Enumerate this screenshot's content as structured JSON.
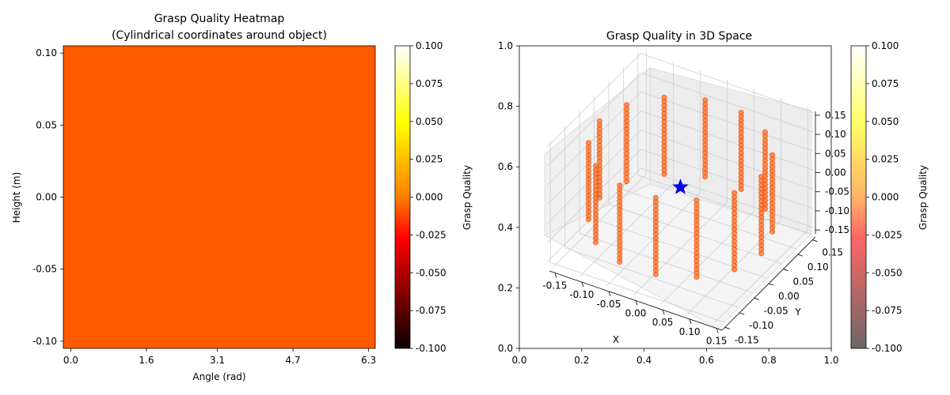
{
  "chart_data": [
    {
      "type": "heatmap",
      "title": "Grasp Quality Heatmap",
      "subtitle": "(Cylindrical coordinates around object)",
      "xlabel": "Angle (rad)",
      "ylabel": "Height (m)",
      "xticks": [
        "0.0",
        "1.6",
        "3.1",
        "4.7",
        "6.3"
      ],
      "yticks": [
        "-0.10",
        "-0.05",
        "0.00",
        "0.05",
        "0.10"
      ],
      "xlim": [
        -0.157,
        6.44
      ],
      "ylim": [
        -0.105,
        0.105
      ],
      "grid": false,
      "value": 0.0,
      "fill_color": "#ff5a00",
      "colorbar": {
        "label": "Grasp Quality",
        "colormap": "hot",
        "range": [
          -0.1,
          0.1
        ],
        "ticks": [
          "-0.100",
          "-0.075",
          "-0.050",
          "-0.025",
          "0.000",
          "0.025",
          "0.050",
          "0.075",
          "0.100"
        ]
      }
    },
    {
      "type": "scatter",
      "title": "Grasp Quality in 3D Space",
      "projection": "3d",
      "xlabel": "X",
      "ylabel": "Y",
      "xlim": [
        -0.16,
        0.16
      ],
      "ylim": [
        -0.16,
        0.16
      ],
      "zlim": [
        -0.16,
        0.16
      ],
      "xticks": [
        "-0.15",
        "-0.10",
        "-0.05",
        "0.00",
        "0.05",
        "0.10",
        "0.15"
      ],
      "yticks": [
        "-0.15",
        "-0.10",
        "-0.05",
        "0.00",
        "0.05",
        "0.10",
        "0.15"
      ],
      "zticks": [
        "-0.15",
        "-0.10",
        "-0.05",
        "0.00",
        "0.05",
        "0.10",
        "0.15"
      ],
      "outer_axes": {
        "xticks": [
          "0.0",
          "0.2",
          "0.4",
          "0.6",
          "0.8",
          "1.0"
        ],
        "yticks": [
          "0.0",
          "0.2",
          "0.4",
          "0.6",
          "0.8",
          "1.0"
        ]
      },
      "points": {
        "color": "#ff6a20",
        "angles": [
          0.0,
          0.4488,
          0.8976,
          1.3464,
          1.7952,
          2.244,
          2.6928,
          3.1416,
          3.5904,
          4.0392,
          4.488,
          4.9368,
          5.3856,
          5.8344
        ],
        "radius": 0.15,
        "z": [
          -0.1,
          -0.0895,
          -0.0789,
          -0.0684,
          -0.0579,
          -0.0474,
          -0.0368,
          -0.0263,
          -0.0158,
          -0.0053,
          0.0053,
          0.0158,
          0.0263,
          0.0368,
          0.0474,
          0.0579,
          0.0684,
          0.0789,
          0.0895,
          0.1
        ],
        "quality": 0.0
      },
      "best_grasp": {
        "x": 0.0,
        "y": 0.0,
        "z": 0.0,
        "color": "#0000ff",
        "marker": "star"
      },
      "colorbar": {
        "label": "Grasp Quality",
        "colormap": "hot",
        "alpha": 0.6,
        "range": [
          -0.1,
          0.1
        ],
        "ticks": [
          "-0.100",
          "-0.075",
          "-0.050",
          "-0.025",
          "0.000",
          "0.025",
          "0.050",
          "0.075",
          "0.100"
        ]
      }
    }
  ]
}
